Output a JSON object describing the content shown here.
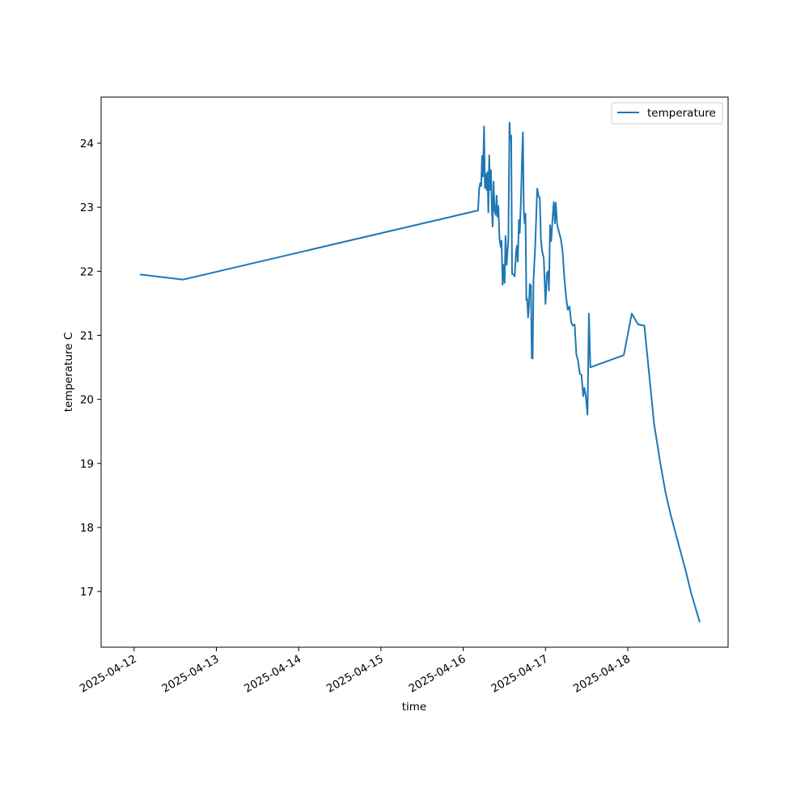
{
  "chart_data": {
    "type": "line",
    "title": "",
    "xlabel": "time",
    "ylabel": "temperature C",
    "xlim": [
      "2025-04-11T21:00",
      "2025-04-18T21:00"
    ],
    "ylim": [
      16.13,
      24.72
    ],
    "x_ticks": [
      "2025-04-12",
      "2025-04-13",
      "2025-04-14",
      "2025-04-15",
      "2025-04-16",
      "2025-04-17",
      "2025-04-18"
    ],
    "y_ticks": [
      17,
      18,
      19,
      20,
      21,
      22,
      23,
      24
    ],
    "grid": false,
    "legend": {
      "position": "top-right",
      "entries": [
        "temperature"
      ]
    },
    "series": [
      {
        "name": "temperature",
        "color": "#1f77b4",
        "points": [
          [
            "2025-04-12T01:43",
            21.95
          ],
          [
            "2025-04-12T14:17",
            21.87
          ],
          [
            "2025-04-16T04:20",
            22.95
          ],
          [
            "2025-04-16T04:40",
            23.3
          ],
          [
            "2025-04-16T05:00",
            23.38
          ],
          [
            "2025-04-16T05:15",
            23.33
          ],
          [
            "2025-04-16T05:30",
            23.8
          ],
          [
            "2025-04-16T05:45",
            23.48
          ],
          [
            "2025-04-16T06:05",
            24.26
          ],
          [
            "2025-04-16T06:20",
            23.3
          ],
          [
            "2025-04-16T06:35",
            23.52
          ],
          [
            "2025-04-16T06:50",
            23.27
          ],
          [
            "2025-04-16T07:05",
            23.55
          ],
          [
            "2025-04-16T07:20",
            22.92
          ],
          [
            "2025-04-16T07:35",
            23.81
          ],
          [
            "2025-04-16T07:50",
            23.27
          ],
          [
            "2025-04-16T08:05",
            23.58
          ],
          [
            "2025-04-16T08:20",
            23.0
          ],
          [
            "2025-04-16T08:35",
            22.7
          ],
          [
            "2025-04-16T08:50",
            23.4
          ],
          [
            "2025-04-16T09:10",
            22.95
          ],
          [
            "2025-04-16T09:30",
            22.88
          ],
          [
            "2025-04-16T09:45",
            23.18
          ],
          [
            "2025-04-16T10:00",
            22.85
          ],
          [
            "2025-04-16T10:15",
            23.02
          ],
          [
            "2025-04-16T10:35",
            22.5
          ],
          [
            "2025-04-16T10:55",
            22.38
          ],
          [
            "2025-04-16T11:10",
            22.48
          ],
          [
            "2025-04-16T11:30",
            21.79
          ],
          [
            "2025-04-16T11:45",
            22.1
          ],
          [
            "2025-04-16T12:05",
            21.82
          ],
          [
            "2025-04-16T12:20",
            22.55
          ],
          [
            "2025-04-16T12:40",
            22.1
          ],
          [
            "2025-04-16T13:10",
            22.5
          ],
          [
            "2025-04-16T13:30",
            24.32
          ],
          [
            "2025-04-16T13:45",
            24.05
          ],
          [
            "2025-04-16T14:00",
            24.12
          ],
          [
            "2025-04-16T14:15",
            21.96
          ],
          [
            "2025-04-16T14:40",
            21.95
          ],
          [
            "2025-04-16T15:00",
            21.92
          ],
          [
            "2025-04-16T15:25",
            22.3
          ],
          [
            "2025-04-16T15:40",
            22.4
          ],
          [
            "2025-04-16T15:55",
            22.15
          ],
          [
            "2025-04-16T16:15",
            22.8
          ],
          [
            "2025-04-16T16:30",
            22.6
          ],
          [
            "2025-04-16T16:50",
            23.1
          ],
          [
            "2025-04-16T17:10",
            23.8
          ],
          [
            "2025-04-16T17:25",
            24.17
          ],
          [
            "2025-04-16T17:40",
            22.95
          ],
          [
            "2025-04-16T17:55",
            22.75
          ],
          [
            "2025-04-16T18:10",
            22.9
          ],
          [
            "2025-04-16T18:25",
            21.55
          ],
          [
            "2025-04-16T18:40",
            21.57
          ],
          [
            "2025-04-16T18:55",
            21.28
          ],
          [
            "2025-04-16T19:10",
            21.45
          ],
          [
            "2025-04-16T19:25",
            21.8
          ],
          [
            "2025-04-16T19:45",
            21.78
          ],
          [
            "2025-04-16T20:00",
            20.64
          ],
          [
            "2025-04-16T20:15",
            20.64
          ],
          [
            "2025-04-16T20:30",
            21.85
          ],
          [
            "2025-04-16T21:00",
            22.4
          ],
          [
            "2025-04-16T21:35",
            23.29
          ],
          [
            "2025-04-16T22:00",
            23.17
          ],
          [
            "2025-04-16T22:20",
            23.15
          ],
          [
            "2025-04-16T22:40",
            22.5
          ],
          [
            "2025-04-16T23:00",
            22.32
          ],
          [
            "2025-04-16T23:30",
            22.2
          ],
          [
            "2025-04-17T00:00",
            21.49
          ],
          [
            "2025-04-17T00:25",
            21.97
          ],
          [
            "2025-04-17T00:45",
            22.0
          ],
          [
            "2025-04-17T01:00",
            21.7
          ],
          [
            "2025-04-17T01:20",
            22.72
          ],
          [
            "2025-04-17T01:40",
            22.47
          ],
          [
            "2025-04-17T02:05",
            22.85
          ],
          [
            "2025-04-17T02:25",
            23.08
          ],
          [
            "2025-04-17T02:45",
            22.75
          ],
          [
            "2025-04-17T03:00",
            23.07
          ],
          [
            "2025-04-17T03:25",
            22.72
          ],
          [
            "2025-04-17T04:00",
            22.6
          ],
          [
            "2025-04-17T04:30",
            22.5
          ],
          [
            "2025-04-17T05:00",
            22.3
          ],
          [
            "2025-04-17T05:30",
            21.9
          ],
          [
            "2025-04-17T06:00",
            21.6
          ],
          [
            "2025-04-17T06:30",
            21.4
          ],
          [
            "2025-04-17T07:00",
            21.45
          ],
          [
            "2025-04-17T07:30",
            21.2
          ],
          [
            "2025-04-17T08:00",
            21.15
          ],
          [
            "2025-04-17T08:30",
            21.17
          ],
          [
            "2025-04-17T09:00",
            20.7
          ],
          [
            "2025-04-17T09:30",
            20.6
          ],
          [
            "2025-04-17T10:00",
            20.4
          ],
          [
            "2025-04-17T10:30",
            20.38
          ],
          [
            "2025-04-17T11:00",
            20.05
          ],
          [
            "2025-04-17T11:20",
            20.18
          ],
          [
            "2025-04-17T11:45",
            20.05
          ],
          [
            "2025-04-17T12:15",
            19.76
          ],
          [
            "2025-04-17T12:40",
            21.34
          ],
          [
            "2025-04-17T13:05",
            20.5
          ],
          [
            "2025-04-17T22:50",
            20.69
          ],
          [
            "2025-04-18T01:10",
            21.34
          ],
          [
            "2025-04-18T03:00",
            21.17
          ],
          [
            "2025-04-18T04:50",
            21.15
          ],
          [
            "2025-04-18T07:40",
            19.62
          ],
          [
            "2025-04-18T09:30",
            19.0
          ],
          [
            "2025-04-18T11:00",
            18.55
          ],
          [
            "2025-04-18T12:30",
            18.2
          ],
          [
            "2025-04-18T14:00",
            17.9
          ],
          [
            "2025-04-18T15:30",
            17.6
          ],
          [
            "2025-04-18T17:00",
            17.3
          ],
          [
            "2025-04-18T18:30",
            16.97
          ],
          [
            "2025-04-18T21:00",
            16.52
          ]
        ]
      }
    ]
  }
}
